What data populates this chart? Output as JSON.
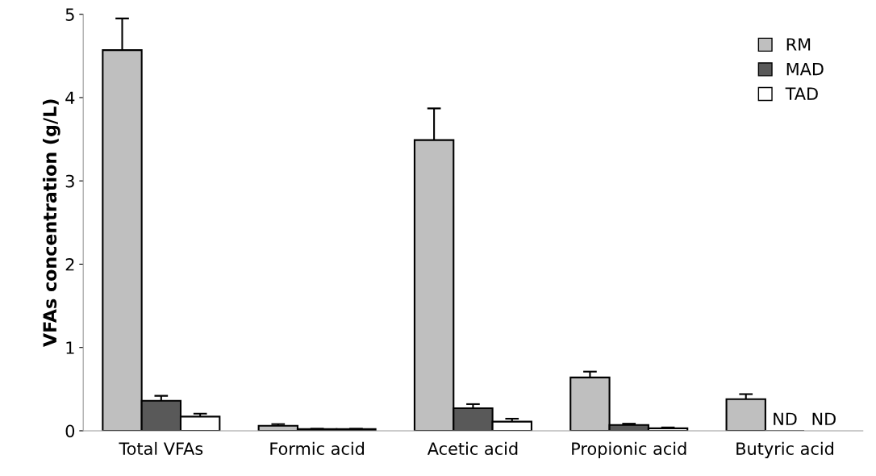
{
  "chart_data": {
    "type": "bar",
    "ylabel": "VFAs concentration (g/L)",
    "categories": [
      "Total VFAs",
      "Formic acid",
      "Acetic acid",
      "Propionic acid",
      "Butyric acid"
    ],
    "series": [
      {
        "name": "RM",
        "color": "#bfbfbf",
        "values": [
          4.57,
          0.06,
          3.49,
          0.64,
          0.38
        ],
        "errors": [
          0.38,
          0.02,
          0.38,
          0.07,
          0.06
        ]
      },
      {
        "name": "MAD",
        "color": "#595959",
        "values": [
          0.36,
          0.02,
          0.27,
          0.07,
          0
        ],
        "errors": [
          0.06,
          0.005,
          0.05,
          0.015,
          null
        ],
        "value_labels": [
          null,
          null,
          null,
          null,
          "ND"
        ]
      },
      {
        "name": "TAD",
        "color": "#ffffff",
        "values": [
          0.17,
          0.02,
          0.11,
          0.03,
          0
        ],
        "errors": [
          0.035,
          0.005,
          0.035,
          0.01,
          null
        ],
        "value_labels": [
          null,
          null,
          null,
          null,
          "ND"
        ]
      }
    ],
    "ylim": [
      0,
      5
    ],
    "yticks": [
      0,
      1,
      2,
      3,
      4,
      5
    ],
    "grid": false,
    "legend": "top right"
  }
}
